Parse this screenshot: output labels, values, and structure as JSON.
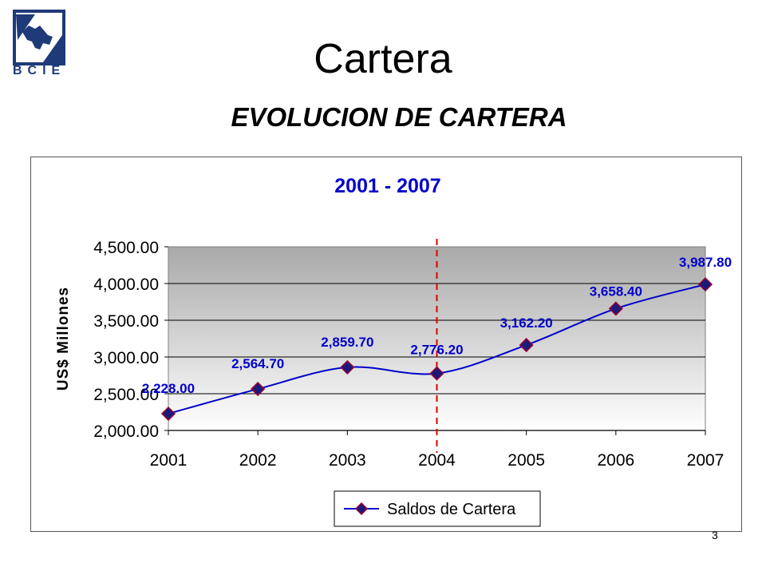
{
  "header": {
    "logo_text": "BCIE",
    "title": "Cartera",
    "subtitle": "EVOLUCION DE CARTERA"
  },
  "footer": {
    "page_number": "3"
  },
  "colors": {
    "series_line": "#0000cc",
    "marker_fill": "#1a1a7a",
    "marker_border": "#990033",
    "data_label": "#0000cc",
    "divider": "#dd0000",
    "chart_title": "#0000cc",
    "logo": "#1f3a78"
  },
  "icons": {
    "logo": "bcie-logo-icon",
    "legend_marker": "diamond-marker-icon"
  },
  "chart_data": {
    "type": "line",
    "title": "2001 - 2007",
    "xlabel": "",
    "ylabel": "US$ Millones",
    "categories": [
      "2001",
      "2002",
      "2003",
      "2004",
      "2005",
      "2006",
      "2007"
    ],
    "series": [
      {
        "name": "Saldos de Cartera",
        "values": [
          2228.0,
          2564.7,
          2859.7,
          2776.2,
          3162.2,
          3658.4,
          3987.8
        ],
        "labels": [
          "2,228.00",
          "2,564.70",
          "2,859.70",
          "2,776.20",
          "3,162.20",
          "3,658.40",
          "3,987.80"
        ]
      }
    ],
    "ylim": [
      2000,
      4500
    ],
    "yticks": [
      2000,
      2500,
      3000,
      3500,
      4000,
      4500
    ],
    "ytick_labels": [
      "2,000.00",
      "2,500.00",
      "3,000.00",
      "3,500.00",
      "4,000.00",
      "4,500.00"
    ],
    "grid": true,
    "vertical_marker_category": "2004",
    "legend_position": "bottom"
  }
}
